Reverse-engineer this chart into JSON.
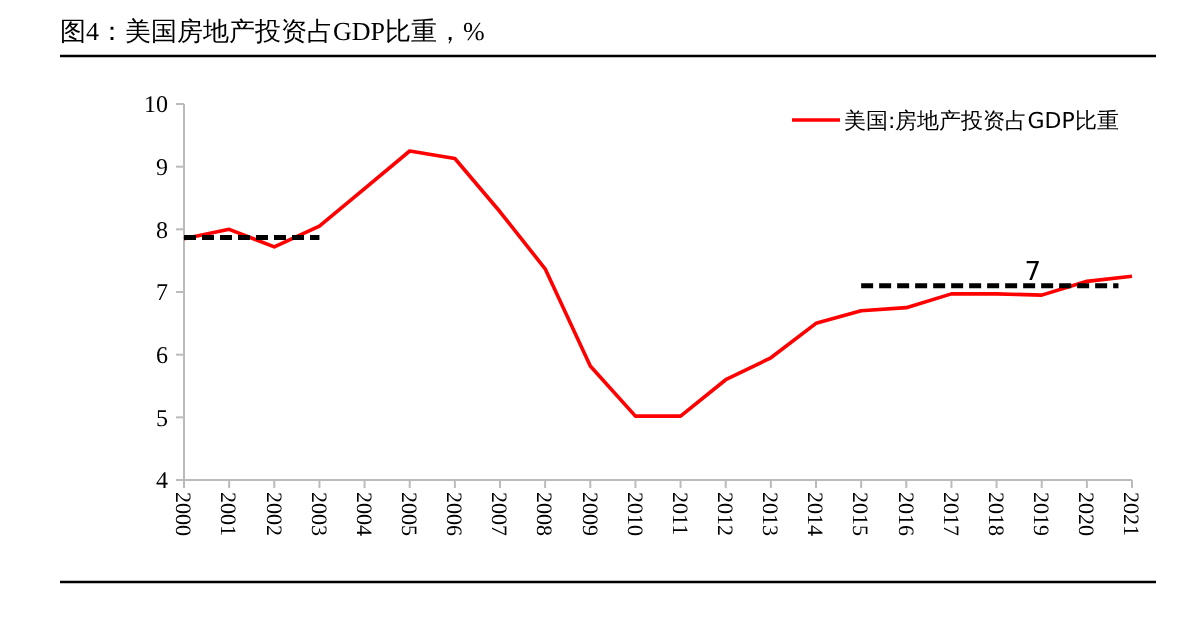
{
  "chart_data": {
    "type": "line",
    "title": "图4：美国房地产投资占GDP比重，%",
    "x": [
      2000,
      2001,
      2002,
      2003,
      2004,
      2005,
      2006,
      2007,
      2008,
      2009,
      2010,
      2011,
      2012,
      2013,
      2014,
      2015,
      2016,
      2017,
      2018,
      2019,
      2020,
      2021
    ],
    "xlim": [
      2000,
      2021
    ],
    "xticks": [
      2000,
      2001,
      2002,
      2003,
      2004,
      2005,
      2006,
      2007,
      2008,
      2009,
      2010,
      2011,
      2012,
      2013,
      2014,
      2015,
      2016,
      2017,
      2018,
      2019,
      2020,
      2021
    ],
    "ylim": [
      4,
      10
    ],
    "yticks": [
      4,
      5,
      6,
      7,
      8,
      9,
      10
    ],
    "series": [
      {
        "name": "美国:房地产投资占GDP比重",
        "color": "#ff0000",
        "values": [
          7.85,
          8.0,
          7.72,
          8.05,
          8.65,
          9.25,
          9.13,
          8.28,
          7.37,
          5.82,
          5.02,
          5.02,
          5.6,
          5.95,
          6.5,
          6.7,
          6.75,
          6.97,
          6.97,
          6.95,
          7.17,
          7.25
        ]
      },
      {
        "color": "#000000",
        "line_style": "dashed",
        "x": [
          2000,
          2003
        ],
        "values": [
          7.87,
          7.87
        ]
      },
      {
        "color": "#000000",
        "line_style": "dashed",
        "x": [
          2015,
          2020.7
        ],
        "values": [
          7.1,
          7.1
        ]
      }
    ],
    "annotations": [
      {
        "text": "7",
        "x": 2018.8,
        "y": 7.1
      }
    ],
    "legend": "top right",
    "grid": false
  }
}
